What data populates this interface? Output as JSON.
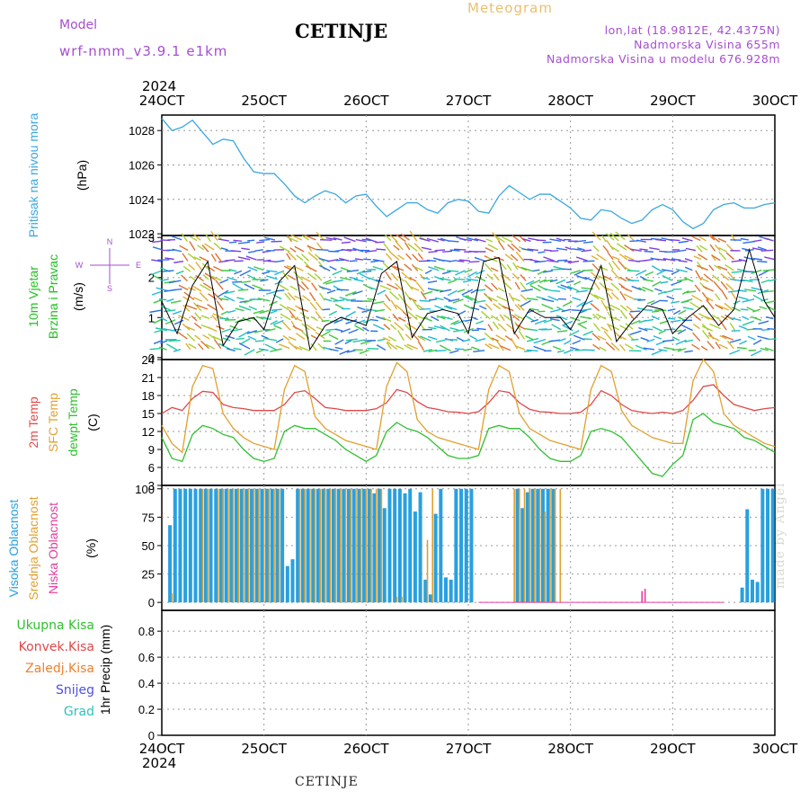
{
  "header": {
    "station": "CETINJE",
    "meteogram": "Meteogram",
    "model_label": "Model",
    "model_version": "wrf-nmm_v3.9.1 e1km",
    "lonlat": "lon,lat (18.9812E, 42.4375N)",
    "altitude": "Nadmorska Visina 655m",
    "model_altitude": "Nadmorska Visina u modelu 676.928m",
    "footer_station": "CETINJE",
    "credit": "made by Angel"
  },
  "time_axis": {
    "year": "2024",
    "dates": [
      "24OCT",
      "25OCT",
      "26OCT",
      "27OCT",
      "28OCT",
      "29OCT",
      "30OCT"
    ]
  },
  "colors": {
    "pressure": "#3aa7e0",
    "temp": "#e04848",
    "sfc_temp": "#e0a030",
    "dewpt": "#30c030",
    "high_cloud": "#28a0e0",
    "mid_cloud": "#e0a030",
    "low_cloud": "#e040a0",
    "wind_label": "#20c020",
    "purple": "#a64ed0",
    "precip_total": "#30c030",
    "precip_conv": "#e04848",
    "precip_frz": "#f08030",
    "precip_snow": "#5050e0",
    "precip_grad": "#30c0c0"
  },
  "chart_data": [
    {
      "type": "line",
      "panel": "pressure",
      "labels": [
        "Pritisak na nivou mora",
        "(hPa)"
      ],
      "yticks": [
        1022,
        1024,
        1026,
        1028
      ],
      "ylim": [
        1021.9,
        1028.9
      ],
      "series": [
        {
          "x": [
            0,
            0.1,
            0.2,
            0.3,
            0.4,
            0.5,
            0.6,
            0.7,
            0.8,
            0.9,
            1.0,
            1.1,
            1.2,
            1.3,
            1.4,
            1.5,
            1.6,
            1.7,
            1.8,
            1.9,
            2.0,
            2.1,
            2.2,
            2.3,
            2.4,
            2.5,
            2.6,
            2.7,
            2.8,
            2.9,
            3.0,
            3.1,
            3.2,
            3.3,
            3.4,
            3.5,
            3.6,
            3.7,
            3.8,
            3.9,
            4.0,
            4.1,
            4.2,
            4.3,
            4.4,
            4.5,
            4.6,
            4.7,
            4.8,
            4.9,
            5.0,
            5.1,
            5.2,
            5.3,
            5.4,
            5.5,
            5.6,
            5.7,
            5.8,
            5.9,
            6.0
          ],
          "y": [
            1028.7,
            1028.0,
            1028.2,
            1028.6,
            1027.9,
            1027.2,
            1027.5,
            1027.4,
            1026.4,
            1025.6,
            1025.5,
            1025.5,
            1024.9,
            1024.2,
            1023.8,
            1024.2,
            1024.5,
            1024.3,
            1023.8,
            1024.2,
            1024.3,
            1023.6,
            1023.0,
            1023.4,
            1023.8,
            1023.8,
            1023.4,
            1023.2,
            1023.8,
            1024.0,
            1023.9,
            1023.3,
            1023.2,
            1024.2,
            1024.8,
            1024.4,
            1024.0,
            1024.3,
            1024.3,
            1023.9,
            1023.5,
            1022.9,
            1022.8,
            1023.4,
            1023.3,
            1022.9,
            1022.6,
            1022.8,
            1023.4,
            1023.7,
            1023.4,
            1022.7,
            1022.3,
            1022.6,
            1023.4,
            1023.7,
            1023.8,
            1023.5,
            1023.5,
            1023.7,
            1023.8
          ]
        }
      ]
    },
    {
      "type": "line",
      "panel": "wind",
      "labels": [
        "10m Vjetar",
        "Brzina i Pravac",
        "(m/s)"
      ],
      "compass": [
        "N",
        "W",
        "E",
        "S"
      ],
      "yticks": [
        0,
        1,
        2,
        3
      ],
      "ylim": [
        -0.05,
        3.05
      ],
      "series": [
        {
          "name": "brzina",
          "x": [
            0,
            0.15,
            0.3,
            0.45,
            0.6,
            0.75,
            0.9,
            1.0,
            1.15,
            1.3,
            1.45,
            1.6,
            1.75,
            1.9,
            2.0,
            2.15,
            2.3,
            2.45,
            2.6,
            2.75,
            2.9,
            3.0,
            3.15,
            3.3,
            3.45,
            3.6,
            3.75,
            3.9,
            4.0,
            4.15,
            4.3,
            4.45,
            4.6,
            4.75,
            4.9,
            5.0,
            5.15,
            5.3,
            5.45,
            5.6,
            5.75,
            5.9,
            6.0
          ],
          "y": [
            1.4,
            0.6,
            1.8,
            2.4,
            0.3,
            0.9,
            1.0,
            0.7,
            1.9,
            2.3,
            0.2,
            0.8,
            1.0,
            0.9,
            0.8,
            2.1,
            2.4,
            0.5,
            1.1,
            1.2,
            1.1,
            0.6,
            2.4,
            2.5,
            0.6,
            1.2,
            1.0,
            1.0,
            0.7,
            1.4,
            2.3,
            0.4,
            0.9,
            1.3,
            1.2,
            0.6,
            1.0,
            1.3,
            0.8,
            1.2,
            2.7,
            1.4,
            1.0
          ]
        }
      ]
    },
    {
      "type": "line",
      "panel": "temperature",
      "labels": [
        "2m Temp",
        "SFC Temp",
        "dewpt Temp",
        "(C)"
      ],
      "yticks": [
        3,
        6,
        9,
        12,
        15,
        18,
        21,
        24
      ],
      "ylim": [
        3,
        24
      ],
      "series": [
        {
          "name": "2m Temp",
          "x": [
            0,
            0.1,
            0.2,
            0.3,
            0.4,
            0.5,
            0.6,
            0.7,
            0.8,
            0.9,
            1.0,
            1.1,
            1.2,
            1.3,
            1.4,
            1.5,
            1.6,
            1.7,
            1.8,
            1.9,
            2.0,
            2.1,
            2.2,
            2.3,
            2.4,
            2.5,
            2.6,
            2.7,
            2.8,
            2.9,
            3.0,
            3.1,
            3.2,
            3.3,
            3.4,
            3.5,
            3.6,
            3.7,
            3.8,
            3.9,
            4.0,
            4.1,
            4.2,
            4.3,
            4.4,
            4.5,
            4.6,
            4.7,
            4.8,
            4.9,
            5.0,
            5.1,
            5.2,
            5.3,
            5.4,
            5.5,
            5.6,
            5.7,
            5.8,
            5.9,
            6.0
          ],
          "y": [
            15.0,
            16.0,
            15.5,
            17.5,
            18.7,
            18.5,
            16.5,
            16.0,
            15.8,
            15.5,
            15.5,
            15.5,
            16.5,
            18.5,
            18.8,
            17.5,
            16.0,
            15.8,
            15.5,
            15.5,
            15.5,
            15.8,
            16.8,
            19.0,
            18.5,
            17.0,
            16.0,
            15.7,
            15.3,
            15.2,
            15.0,
            15.3,
            16.8,
            18.8,
            18.5,
            16.8,
            15.7,
            15.3,
            15.2,
            15.0,
            15.0,
            15.2,
            16.5,
            18.8,
            18.0,
            16.5,
            15.5,
            15.2,
            15.0,
            15.2,
            15.0,
            15.5,
            17.2,
            19.5,
            19.8,
            18.0,
            16.5,
            16.0,
            15.5,
            15.8,
            16.0
          ]
        },
        {
          "name": "SFC Temp",
          "x": [
            0,
            0.1,
            0.2,
            0.3,
            0.4,
            0.5,
            0.6,
            0.7,
            0.8,
            0.9,
            1.0,
            1.1,
            1.2,
            1.3,
            1.4,
            1.5,
            1.6,
            1.7,
            1.8,
            1.9,
            2.0,
            2.1,
            2.2,
            2.3,
            2.4,
            2.5,
            2.6,
            2.7,
            2.8,
            2.9,
            3.0,
            3.1,
            3.2,
            3.3,
            3.4,
            3.5,
            3.6,
            3.7,
            3.8,
            3.9,
            4.0,
            4.1,
            4.2,
            4.3,
            4.4,
            4.5,
            4.6,
            4.7,
            4.8,
            4.9,
            5.0,
            5.1,
            5.2,
            5.3,
            5.4,
            5.5,
            5.6,
            5.7,
            5.8,
            5.9,
            6.0
          ],
          "y": [
            13.0,
            10.0,
            8.5,
            19.5,
            23.0,
            22.5,
            15.0,
            12.5,
            11.0,
            10.0,
            9.5,
            9.0,
            19.0,
            23.0,
            22.0,
            14.5,
            12.5,
            11.5,
            10.5,
            10.0,
            9.5,
            9.0,
            19.5,
            23.5,
            22.0,
            14.0,
            12.0,
            11.0,
            10.5,
            10.0,
            9.5,
            9.0,
            19.0,
            23.0,
            22.0,
            15.0,
            12.5,
            11.5,
            10.5,
            10.0,
            9.5,
            9.0,
            19.0,
            23.0,
            22.0,
            15.5,
            13.0,
            12.0,
            11.0,
            10.5,
            10.0,
            10.0,
            20.5,
            24.0,
            22.0,
            15.0,
            13.0,
            12.0,
            11.0,
            10.0,
            9.5
          ]
        },
        {
          "name": "dewpt Temp",
          "x": [
            0,
            0.1,
            0.2,
            0.3,
            0.4,
            0.5,
            0.6,
            0.7,
            0.8,
            0.9,
            1.0,
            1.1,
            1.2,
            1.3,
            1.4,
            1.5,
            1.6,
            1.7,
            1.8,
            1.9,
            2.0,
            2.1,
            2.2,
            2.3,
            2.4,
            2.5,
            2.6,
            2.7,
            2.8,
            2.9,
            3.0,
            3.1,
            3.2,
            3.3,
            3.4,
            3.5,
            3.6,
            3.7,
            3.8,
            3.9,
            4.0,
            4.1,
            4.2,
            4.3,
            4.4,
            4.5,
            4.6,
            4.7,
            4.8,
            4.9,
            5.0,
            5.1,
            5.2,
            5.3,
            5.4,
            5.5,
            5.6,
            5.7,
            5.8,
            5.9,
            6.0
          ],
          "y": [
            11.0,
            7.5,
            7.0,
            11.5,
            13.0,
            12.5,
            11.5,
            11.0,
            9.0,
            7.5,
            7.0,
            7.5,
            12.0,
            13.0,
            12.5,
            12.5,
            11.5,
            10.5,
            9.0,
            8.0,
            7.0,
            8.0,
            12.0,
            13.5,
            12.5,
            12.0,
            11.0,
            9.5,
            8.0,
            7.5,
            7.5,
            8.0,
            12.5,
            13.0,
            12.5,
            12.5,
            11.0,
            9.0,
            7.5,
            7.0,
            7.0,
            8.0,
            12.0,
            12.5,
            12.0,
            11.0,
            9.0,
            7.0,
            5.0,
            4.5,
            6.5,
            8.0,
            14.0,
            15.0,
            13.5,
            13.0,
            12.5,
            11.0,
            10.5,
            9.5,
            8.5
          ]
        }
      ]
    },
    {
      "type": "bar",
      "panel": "clouds",
      "labels": [
        "Visoka Oblacnost",
        "Srednja Oblacnost",
        "Niska Oblacnost",
        "(%)"
      ],
      "yticks": [
        0,
        25,
        50,
        75,
        100
      ],
      "ylim": [
        -7,
        103
      ],
      "series": [
        {
          "name": "Visoka Oblacnost",
          "x": [
            0.08,
            0.13,
            0.18,
            0.23,
            0.28,
            0.33,
            0.38,
            0.43,
            0.48,
            0.53,
            0.58,
            0.63,
            0.68,
            0.73,
            0.78,
            0.83,
            0.88,
            0.93,
            0.98,
            1.03,
            1.08,
            1.13,
            1.18,
            1.23,
            1.28,
            1.33,
            1.38,
            1.43,
            1.48,
            1.53,
            1.58,
            1.63,
            1.68,
            1.73,
            1.78,
            1.83,
            1.88,
            1.93,
            1.98,
            2.03,
            2.08,
            2.13,
            2.18,
            2.23,
            2.28,
            2.33,
            2.38,
            2.43,
            2.48,
            2.53,
            2.58,
            2.63,
            2.68,
            2.73,
            2.78,
            2.83,
            2.88,
            2.93,
            2.98,
            3.03,
            3.48,
            3.53,
            3.58,
            3.63,
            3.68,
            3.73,
            3.78,
            3.83,
            5.68,
            5.73,
            5.78,
            5.83,
            5.88,
            5.93,
            5.98
          ],
          "y": [
            68,
            100,
            100,
            100,
            100,
            100,
            100,
            100,
            100,
            100,
            100,
            100,
            100,
            100,
            100,
            100,
            100,
            100,
            100,
            100,
            100,
            100,
            100,
            32,
            38,
            100,
            100,
            100,
            100,
            100,
            100,
            100,
            100,
            100,
            100,
            100,
            100,
            100,
            100,
            100,
            96,
            100,
            83,
            100,
            100,
            100,
            96,
            100,
            80,
            97,
            20,
            7,
            78,
            100,
            22,
            20,
            100,
            100,
            100,
            100,
            100,
            83,
            97,
            100,
            100,
            100,
            100,
            100,
            13,
            82,
            20,
            18,
            100,
            100,
            100
          ]
        },
        {
          "name": "Srednja Oblacnost",
          "x": [
            0.1,
            0.4,
            0.45,
            0.55,
            0.6,
            0.65,
            0.7,
            0.75,
            0.8,
            0.85,
            0.9,
            0.95,
            1.0,
            1.05,
            1.1,
            1.15,
            1.35,
            1.4,
            1.45,
            1.5,
            1.55,
            1.6,
            1.65,
            1.7,
            1.75,
            1.8,
            1.85,
            1.9,
            1.95,
            2.0,
            2.05,
            2.1,
            2.15,
            2.3,
            2.35,
            2.6,
            2.65,
            3.45,
            3.5,
            3.55,
            3.6,
            3.65,
            3.7,
            3.75,
            3.8,
            3.85,
            3.9
          ],
          "y": [
            8,
            100,
            100,
            100,
            100,
            100,
            100,
            100,
            100,
            100,
            100,
            100,
            100,
            100,
            100,
            100,
            100,
            100,
            100,
            100,
            100,
            100,
            100,
            100,
            100,
            100,
            100,
            100,
            100,
            100,
            100,
            100,
            100,
            5,
            5,
            55,
            100,
            100,
            100,
            100,
            100,
            100,
            100,
            80,
            100,
            100,
            100
          ]
        },
        {
          "name": "Niska Oblacnost",
          "x": [
            4.7,
            4.73
          ],
          "y": [
            10,
            12
          ]
        }
      ]
    },
    {
      "type": "line",
      "panel": "precip",
      "labels": [
        "Ukupna Kisa",
        "Konvek.Kisa",
        "Zaledj.Kisa",
        "Snijeg",
        "Grad",
        "1hr Precip (mm)"
      ],
      "yticks": [
        0,
        0.2,
        0.4,
        0.6,
        0.8
      ],
      "ylim": [
        0,
        0.96
      ],
      "series": []
    }
  ]
}
